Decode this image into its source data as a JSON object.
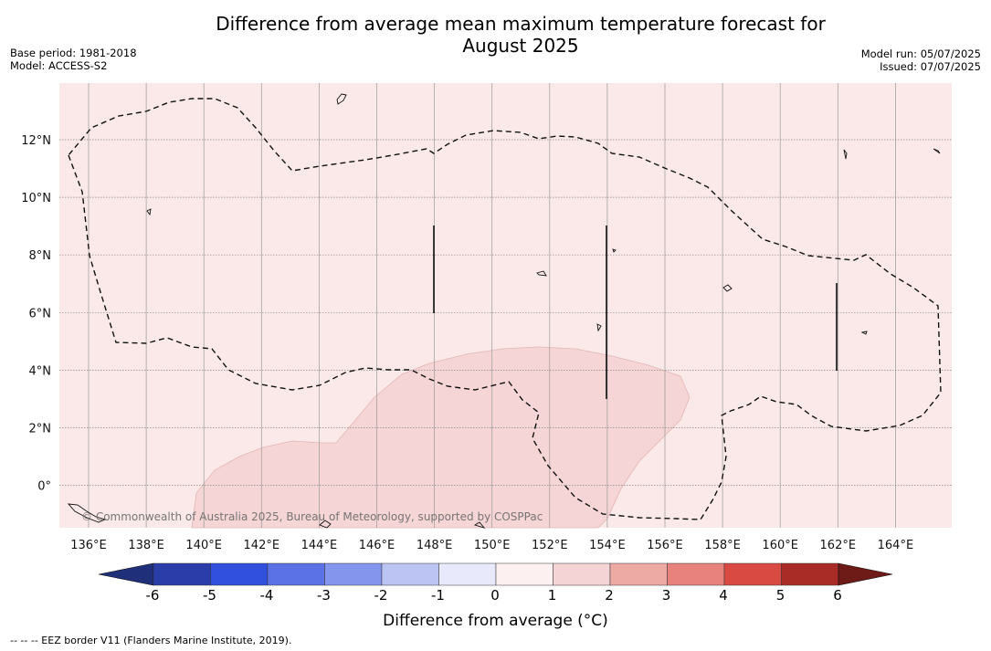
{
  "title_line1": "Difference from average mean maximum temperature forecast for",
  "title_line2": "August 2025",
  "meta": {
    "base_period": "Base period: 1981-2018",
    "model": "Model: ACCESS-S2",
    "model_run": "Model run: 05/07/2025",
    "issued": "Issued: 07/07/2025"
  },
  "map": {
    "x_ticks": [
      "136°E",
      "138°E",
      "140°E",
      "142°E",
      "144°E",
      "146°E",
      "148°E",
      "150°E",
      "152°E",
      "154°E",
      "156°E",
      "158°E",
      "160°E",
      "162°E",
      "164°E"
    ],
    "y_ticks": [
      "12°N",
      "10°N",
      "8°N",
      "6°N",
      "4°N",
      "2°N",
      "0°"
    ],
    "background_anomaly_color": "#fbe8e8",
    "warm_anomaly_color": "#f5d5d5",
    "copyright": "© Commonwealth of Australia 2025, Bureau of Meteorology, supported by COSPPac"
  },
  "colorbar": {
    "ticks": [
      "-6",
      "-5",
      "-4",
      "-3",
      "-2",
      "-1",
      "0",
      "1",
      "2",
      "3",
      "4",
      "5",
      "6"
    ],
    "colors": [
      "#2a3da8",
      "#3150de",
      "#5a72e6",
      "#8395ec",
      "#bcc4f4",
      "#e8eafb",
      "#fcf0f0",
      "#f4d4d4",
      "#edaaa5",
      "#e7837c",
      "#d94a42",
      "#a92c27"
    ],
    "low_extend_color": "#1f2f7a",
    "high_extend_color": "#6e1a16",
    "label": "Difference from average (°C)"
  },
  "footnote": "--  --  -- EEZ border V11 (Flanders Marine Institute, 2019)."
}
